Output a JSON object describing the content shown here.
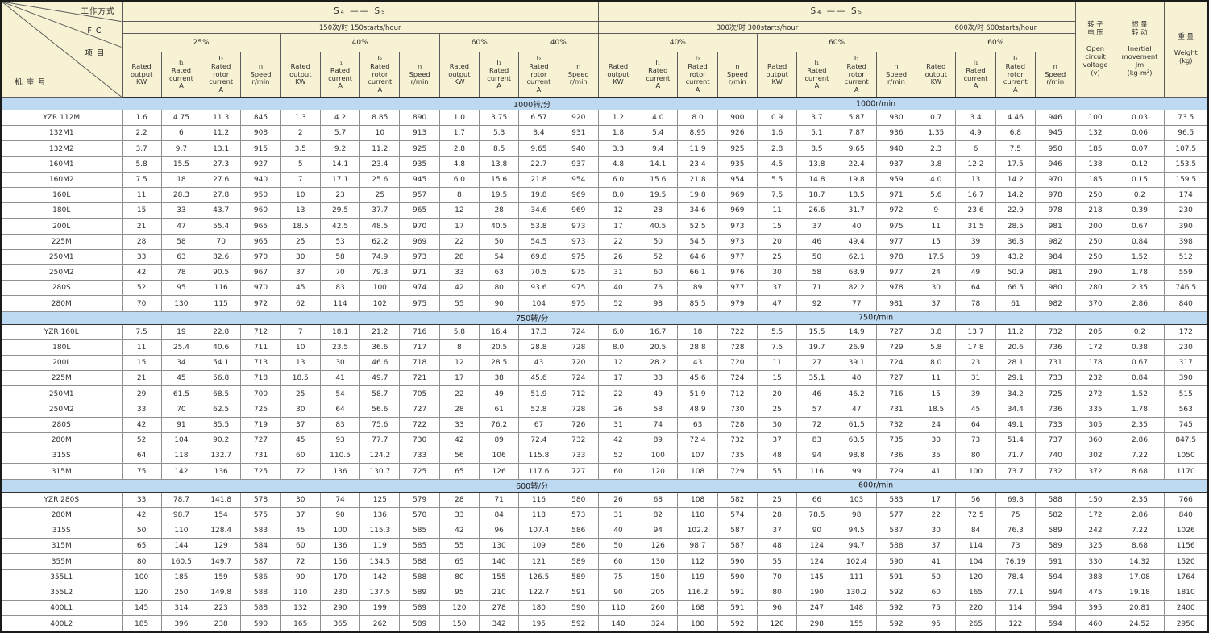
{
  "table": {
    "corner": {
      "work_mode": "工作方式",
      "fc": "F C",
      "item": "项 目",
      "frame": "机 座 号"
    },
    "duty_left": "S₄ —— S₅",
    "duty_right": "S₄ —— S₅",
    "start_sections": [
      {
        "label": "150次/时  150starts/hour",
        "span": 12
      },
      {
        "label": "300次/时  300starts/hour",
        "span": 8
      },
      {
        "label": "600次/时  600starts/hour",
        "span": 4
      }
    ],
    "fc_cells": [
      {
        "labels": [
          "25%"
        ],
        "span": 4
      },
      {
        "labels": [
          "40%"
        ],
        "span": 4
      },
      {
        "labels": [
          "60%",
          "40%"
        ],
        "span": 4
      },
      {
        "labels": [
          "40%"
        ],
        "span": 4
      },
      {
        "labels": [
          "60%"
        ],
        "span": 4
      },
      {
        "labels": [
          "60%"
        ],
        "span": 4
      }
    ],
    "col_headers": [
      "Rated\noutput\nKW",
      "I₁\nRated\ncurrent\nA",
      "I₂\nRated\nrotor\ncurrent\nA",
      "n\nSpeed\nr/min"
    ],
    "right_headers": {
      "voltage": "转 子\n电 压\n\nOpen\ncircuit\nvoltage\n(v)",
      "inertia": "惯 量\n转 动\n\nInertial\nmovement\nJm\n(kg-m²)",
      "weight": "重 量\n\nWeight\n(kg)"
    },
    "sections": [
      {
        "band_cn": "1000转/分",
        "band_en": "1000r/min",
        "rows": [
          [
            "YZR 112M",
            "1.6",
            "4.75",
            "11.3",
            "845",
            "1.3",
            "4.2",
            "8.85",
            "890",
            "1.0",
            "3.75",
            "6.57",
            "920",
            "1.2",
            "4.0",
            "8.0",
            "900",
            "0.9",
            "3.7",
            "5.87",
            "930",
            "0.7",
            "3.4",
            "4.46",
            "946",
            "100",
            "0.03",
            "73.5"
          ],
          [
            "132M1",
            "2.2",
            "6",
            "11.2",
            "908",
            "2",
            "5.7",
            "10",
            "913",
            "1.7",
            "5.3",
            "8.4",
            "931",
            "1.8",
            "5.4",
            "8.95",
            "926",
            "1.6",
            "5.1",
            "7.87",
            "936",
            "1.35",
            "4.9",
            "6.8",
            "945",
            "132",
            "0.06",
            "96.5"
          ],
          [
            "132M2",
            "3.7",
            "9.7",
            "13.1",
            "915",
            "3.5",
            "9.2",
            "11.2",
            "925",
            "2.8",
            "8.5",
            "9.65",
            "940",
            "3.3",
            "9.4",
            "11.9",
            "925",
            "2.8",
            "8.5",
            "9.65",
            "940",
            "2.3",
            "6",
            "7.5",
            "950",
            "185",
            "0.07",
            "107.5"
          ],
          [
            "160M1",
            "5.8",
            "15.5",
            "27.3",
            "927",
            "5",
            "14.1",
            "23.4",
            "935",
            "4.8",
            "13.8",
            "22.7",
            "937",
            "4.8",
            "14.1",
            "23.4",
            "935",
            "4.5",
            "13.8",
            "22.4",
            "937",
            "3.8",
            "12.2",
            "17.5",
            "946",
            "138",
            "0.12",
            "153.5"
          ],
          [
            "160M2",
            "7.5",
            "18",
            "27.6",
            "940",
            "7",
            "17.1",
            "25.6",
            "945",
            "6.0",
            "15.6",
            "21.8",
            "954",
            "6.0",
            "15.6",
            "21.8",
            "954",
            "5.5",
            "14.8",
            "19.8",
            "959",
            "4.0",
            "13",
            "14.2",
            "970",
            "185",
            "0.15",
            "159.5"
          ],
          [
            "160L",
            "11",
            "28.3",
            "27.8",
            "950",
            "10",
            "23",
            "25",
            "957",
            "8",
            "19.5",
            "19.8",
            "969",
            "8.0",
            "19.5",
            "19.8",
            "969",
            "7.5",
            "18.7",
            "18.5",
            "971",
            "5.6",
            "16.7",
            "14.2",
            "978",
            "250",
            "0.2",
            "174"
          ],
          [
            "180L",
            "15",
            "33",
            "43.7",
            "960",
            "13",
            "29.5",
            "37.7",
            "965",
            "12",
            "28",
            "34.6",
            "969",
            "12",
            "28",
            "34.6",
            "969",
            "11",
            "26.6",
            "31.7",
            "972",
            "9",
            "23.6",
            "22.9",
            "978",
            "218",
            "0.39",
            "230"
          ],
          [
            "200L",
            "21",
            "47",
            "55.4",
            "965",
            "18.5",
            "42.5",
            "48.5",
            "970",
            "17",
            "40.5",
            "53.8",
            "973",
            "17",
            "40.5",
            "52.5",
            "973",
            "15",
            "37",
            "40",
            "975",
            "11",
            "31.5",
            "28.5",
            "981",
            "200",
            "0.67",
            "390"
          ],
          [
            "225M",
            "28",
            "58",
            "70",
            "965",
            "25",
            "53",
            "62.2",
            "969",
            "22",
            "50",
            "54.5",
            "973",
            "22",
            "50",
            "54.5",
            "973",
            "20",
            "46",
            "49.4",
            "977",
            "15",
            "39",
            "36.8",
            "982",
            "250",
            "0.84",
            "398"
          ],
          [
            "250M1",
            "33",
            "63",
            "82.6",
            "970",
            "30",
            "58",
            "74.9",
            "973",
            "28",
            "54",
            "69.8",
            "975",
            "26",
            "52",
            "64.6",
            "977",
            "25",
            "50",
            "62.1",
            "978",
            "17.5",
            "39",
            "43.2",
            "984",
            "250",
            "1.52",
            "512"
          ],
          [
            "250M2",
            "42",
            "78",
            "90.5",
            "967",
            "37",
            "70",
            "79.3",
            "971",
            "33",
            "63",
            "70.5",
            "975",
            "31",
            "60",
            "66.1",
            "976",
            "30",
            "58",
            "63.9",
            "977",
            "24",
            "49",
            "50.9",
            "981",
            "290",
            "1.78",
            "559"
          ],
          [
            "280S",
            "52",
            "95",
            "116",
            "970",
            "45",
            "83",
            "100",
            "974",
            "42",
            "80",
            "93.6",
            "975",
            "40",
            "76",
            "89",
            "977",
            "37",
            "71",
            "82.2",
            "978",
            "30",
            "64",
            "66.5",
            "980",
            "280",
            "2.35",
            "746.5"
          ],
          [
            "280M",
            "70",
            "130",
            "115",
            "972",
            "62",
            "114",
            "102",
            "975",
            "55",
            "90",
            "104",
            "975",
            "52",
            "98",
            "85.5",
            "979",
            "47",
            "92",
            "77",
            "981",
            "37",
            "78",
            "61",
            "982",
            "370",
            "2.86",
            "840"
          ]
        ]
      },
      {
        "band_cn": "750转/分",
        "band_en": "750r/min",
        "rows": [
          [
            "YZR 160L",
            "7.5",
            "19",
            "22.8",
            "712",
            "7",
            "18.1",
            "21.2",
            "716",
            "5.8",
            "16.4",
            "17.3",
            "724",
            "6.0",
            "16.7",
            "18",
            "722",
            "5.5",
            "15.5",
            "14.9",
            "727",
            "3.8",
            "13.7",
            "11.2",
            "732",
            "205",
            "0.2",
            "172"
          ],
          [
            "180L",
            "11",
            "25.4",
            "40.6",
            "711",
            "10",
            "23.5",
            "36.6",
            "717",
            "8",
            "20.5",
            "28.8",
            "728",
            "8.0",
            "20.5",
            "28.8",
            "728",
            "7.5",
            "19.7",
            "26.9",
            "729",
            "5.8",
            "17.8",
            "20.6",
            "736",
            "172",
            "0.38",
            "230"
          ],
          [
            "200L",
            "15",
            "34",
            "54.1",
            "713",
            "13",
            "30",
            "46.6",
            "718",
            "12",
            "28.5",
            "43",
            "720",
            "12",
            "28.2",
            "43",
            "720",
            "11",
            "27",
            "39.1",
            "724",
            "8.0",
            "23",
            "28.1",
            "731",
            "178",
            "0.67",
            "317"
          ],
          [
            "225M",
            "21",
            "45",
            "56.8",
            "718",
            "18.5",
            "41",
            "49.7",
            "721",
            "17",
            "38",
            "45.6",
            "724",
            "17",
            "38",
            "45.6",
            "724",
            "15",
            "35.1",
            "40",
            "727",
            "11",
            "31",
            "29.1",
            "733",
            "232",
            "0.84",
            "390"
          ],
          [
            "250M1",
            "29",
            "61.5",
            "68.5",
            "700",
            "25",
            "54",
            "58.7",
            "705",
            "22",
            "49",
            "51.9",
            "712",
            "22",
            "49",
            "51.9",
            "712",
            "20",
            "46",
            "46.2",
            "716",
            "15",
            "39",
            "34.2",
            "725",
            "272",
            "1.52",
            "515"
          ],
          [
            "250M2",
            "33",
            "70",
            "62.5",
            "725",
            "30",
            "64",
            "56.6",
            "727",
            "28",
            "61",
            "52.8",
            "728",
            "26",
            "58",
            "48.9",
            "730",
            "25",
            "57",
            "47",
            "731",
            "18.5",
            "45",
            "34.4",
            "736",
            "335",
            "1.78",
            "563"
          ],
          [
            "280S",
            "42",
            "91",
            "85.5",
            "719",
            "37",
            "83",
            "75.6",
            "722",
            "33",
            "76.2",
            "67",
            "726",
            "31",
            "74",
            "63",
            "728",
            "30",
            "72",
            "61.5",
            "732",
            "24",
            "64",
            "49.1",
            "733",
            "305",
            "2.35",
            "745"
          ],
          [
            "280M",
            "52",
            "104",
            "90.2",
            "727",
            "45",
            "93",
            "77.7",
            "730",
            "42",
            "89",
            "72.4",
            "732",
            "42",
            "89",
            "72.4",
            "732",
            "37",
            "83",
            "63.5",
            "735",
            "30",
            "73",
            "51.4",
            "737",
            "360",
            "2.86",
            "847.5"
          ],
          [
            "315S",
            "64",
            "118",
            "132.7",
            "731",
            "60",
            "110.5",
            "124.2",
            "733",
            "56",
            "106",
            "115.8",
            "733",
            "52",
            "100",
            "107",
            "735",
            "48",
            "94",
            "98.8",
            "736",
            "35",
            "80",
            "71.7",
            "740",
            "302",
            "7.22",
            "1050"
          ],
          [
            "315M",
            "75",
            "142",
            "136",
            "725",
            "72",
            "136",
            "130.7",
            "725",
            "65",
            "126",
            "117.6",
            "727",
            "60",
            "120",
            "108",
            "729",
            "55",
            "116",
            "99",
            "729",
            "41",
            "100",
            "73.7",
            "732",
            "372",
            "8.68",
            "1170"
          ]
        ]
      },
      {
        "band_cn": "600转/分",
        "band_en": "600r/min",
        "rows": [
          [
            "YZR 280S",
            "33",
            "78.7",
            "141.8",
            "578",
            "30",
            "74",
            "125",
            "579",
            "28",
            "71",
            "116",
            "580",
            "26",
            "68",
            "108",
            "582",
            "25",
            "66",
            "103",
            "583",
            "17",
            "56",
            "69.8",
            "588",
            "150",
            "2.35",
            "766"
          ],
          [
            "280M",
            "42",
            "98.7",
            "154",
            "575",
            "37",
            "90",
            "136",
            "570",
            "33",
            "84",
            "118",
            "573",
            "31",
            "82",
            "110",
            "574",
            "28",
            "78.5",
            "98",
            "577",
            "22",
            "72.5",
            "75",
            "582",
            "172",
            "2.86",
            "840"
          ],
          [
            "315S",
            "50",
            "110",
            "128.4",
            "583",
            "45",
            "100",
            "115.3",
            "585",
            "42",
            "96",
            "107.4",
            "586",
            "40",
            "94",
            "102.2",
            "587",
            "37",
            "90",
            "94.5",
            "587",
            "30",
            "84",
            "76.3",
            "589",
            "242",
            "7.22",
            "1026"
          ],
          [
            "315M",
            "65",
            "144",
            "129",
            "584",
            "60",
            "136",
            "119",
            "585",
            "55",
            "130",
            "109",
            "586",
            "50",
            "126",
            "98.7",
            "587",
            "48",
            "124",
            "94.7",
            "588",
            "37",
            "114",
            "73",
            "589",
            "325",
            "8.68",
            "1156"
          ],
          [
            "355M",
            "80",
            "160.5",
            "149.7",
            "587",
            "72",
            "156",
            "134.5",
            "588",
            "65",
            "140",
            "121",
            "589",
            "60",
            "130",
            "112",
            "590",
            "55",
            "124",
            "102.4",
            "590",
            "41",
            "104",
            "76.19",
            "591",
            "330",
            "14.32",
            "1520"
          ],
          [
            "355L1",
            "100",
            "185",
            "159",
            "586",
            "90",
            "170",
            "142",
            "588",
            "80",
            "155",
            "126.5",
            "589",
            "75",
            "150",
            "119",
            "590",
            "70",
            "145",
            "111",
            "591",
            "50",
            "120",
            "78.4",
            "594",
            "388",
            "17.08",
            "1764"
          ],
          [
            "355L2",
            "120",
            "250",
            "149.8",
            "588",
            "110",
            "230",
            "137.5",
            "589",
            "95",
            "210",
            "122.7",
            "591",
            "90",
            "205",
            "116.2",
            "591",
            "80",
            "190",
            "130.2",
            "592",
            "60",
            "165",
            "77.1",
            "594",
            "475",
            "19.18",
            "1810"
          ],
          [
            "400L1",
            "145",
            "314",
            "223",
            "588",
            "132",
            "290",
            "199",
            "589",
            "120",
            "278",
            "180",
            "590",
            "110",
            "260",
            "168",
            "591",
            "96",
            "247",
            "148",
            "592",
            "75",
            "220",
            "114",
            "594",
            "395",
            "20.81",
            "2400"
          ],
          [
            "400L2",
            "185",
            "396",
            "238",
            "590",
            "165",
            "365",
            "262",
            "589",
            "150",
            "342",
            "195",
            "592",
            "140",
            "324",
            "180",
            "592",
            "120",
            "298",
            "155",
            "592",
            "95",
            "265",
            "122",
            "594",
            "460",
            "24.52",
            "2950"
          ]
        ]
      }
    ]
  }
}
